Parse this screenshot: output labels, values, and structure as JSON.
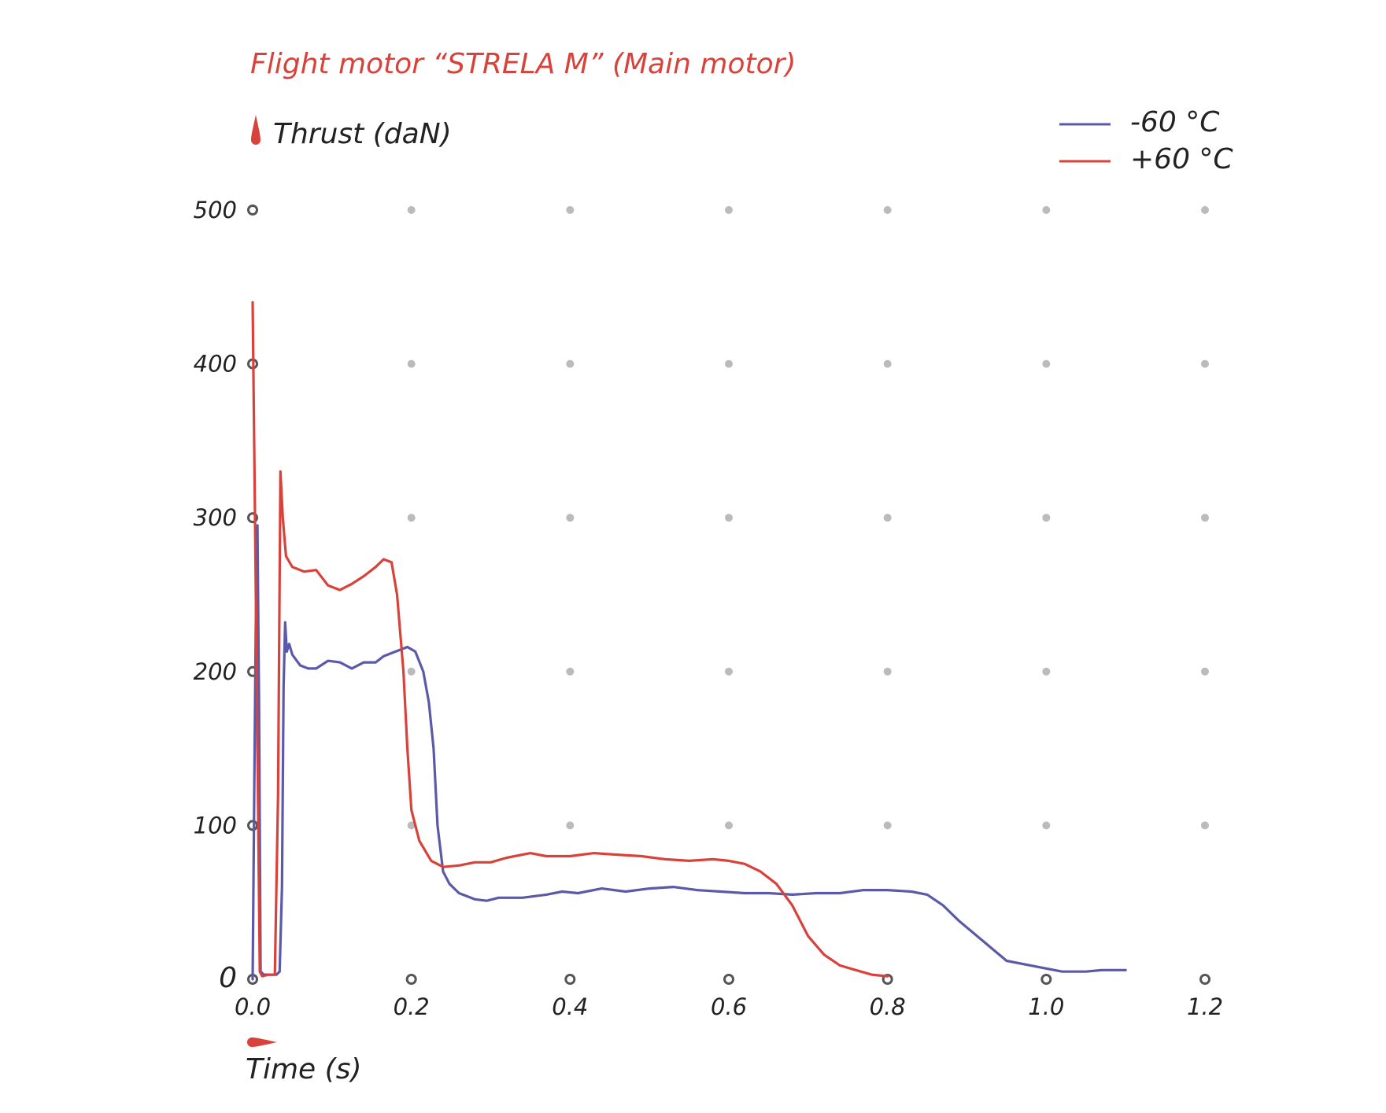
{
  "chart_data": {
    "type": "line",
    "title": "Flight motor “STRELA M” (Main motor)",
    "ylabel": "Thrust (daN)",
    "xlabel": "Time (s)",
    "xlim": [
      0,
      1.2
    ],
    "ylim": [
      0,
      500
    ],
    "x_ticks": [
      "0.0",
      "0.2",
      "0.4",
      "0.6",
      "0.8",
      "1.0",
      "1.2"
    ],
    "y_ticks": [
      "0",
      "100",
      "200",
      "300",
      "400",
      "500"
    ],
    "grid": "dots",
    "legend_position": "top-right",
    "colors": {
      "minus60": "#5b5aa8",
      "plus60": "#d9423a",
      "grid": "#bbbbbb",
      "axis_marker": "#555555"
    },
    "series": [
      {
        "name": "-60 °C",
        "color": "#5b5aa8",
        "points": [
          [
            0.0,
            0
          ],
          [
            0.002,
            120
          ],
          [
            0.004,
            230
          ],
          [
            0.006,
            295
          ],
          [
            0.008,
            180
          ],
          [
            0.01,
            5
          ],
          [
            0.014,
            3
          ],
          [
            0.03,
            3
          ],
          [
            0.034,
            5
          ],
          [
            0.037,
            60
          ],
          [
            0.039,
            190
          ],
          [
            0.041,
            232
          ],
          [
            0.043,
            213
          ],
          [
            0.046,
            218
          ],
          [
            0.05,
            211
          ],
          [
            0.06,
            204
          ],
          [
            0.07,
            202
          ],
          [
            0.08,
            202
          ],
          [
            0.095,
            207
          ],
          [
            0.11,
            206
          ],
          [
            0.125,
            202
          ],
          [
            0.14,
            206
          ],
          [
            0.155,
            206
          ],
          [
            0.165,
            210
          ],
          [
            0.18,
            213
          ],
          [
            0.195,
            216
          ],
          [
            0.205,
            213
          ],
          [
            0.215,
            200
          ],
          [
            0.222,
            180
          ],
          [
            0.228,
            150
          ],
          [
            0.233,
            100
          ],
          [
            0.24,
            70
          ],
          [
            0.248,
            62
          ],
          [
            0.26,
            56
          ],
          [
            0.28,
            52
          ],
          [
            0.295,
            51
          ],
          [
            0.31,
            53
          ],
          [
            0.34,
            53
          ],
          [
            0.37,
            55
          ],
          [
            0.39,
            57
          ],
          [
            0.41,
            56
          ],
          [
            0.44,
            59
          ],
          [
            0.47,
            57
          ],
          [
            0.5,
            59
          ],
          [
            0.53,
            60
          ],
          [
            0.56,
            58
          ],
          [
            0.59,
            57
          ],
          [
            0.62,
            56
          ],
          [
            0.65,
            56
          ],
          [
            0.68,
            55
          ],
          [
            0.71,
            56
          ],
          [
            0.74,
            56
          ],
          [
            0.77,
            58
          ],
          [
            0.8,
            58
          ],
          [
            0.83,
            57
          ],
          [
            0.85,
            55
          ],
          [
            0.87,
            48
          ],
          [
            0.89,
            38
          ],
          [
            0.92,
            25
          ],
          [
            0.95,
            12
          ],
          [
            0.97,
            10
          ],
          [
            1.0,
            7
          ],
          [
            1.02,
            5
          ],
          [
            1.05,
            5
          ],
          [
            1.07,
            6
          ],
          [
            1.1,
            6
          ]
        ]
      },
      {
        "name": "+60 °C",
        "color": "#d9423a",
        "points": [
          [
            0.0,
            440
          ],
          [
            0.003,
            300
          ],
          [
            0.006,
            150
          ],
          [
            0.009,
            5
          ],
          [
            0.012,
            2
          ],
          [
            0.02,
            3
          ],
          [
            0.028,
            3
          ],
          [
            0.032,
            120
          ],
          [
            0.035,
            330
          ],
          [
            0.038,
            300
          ],
          [
            0.042,
            275
          ],
          [
            0.05,
            268
          ],
          [
            0.065,
            265
          ],
          [
            0.08,
            266
          ],
          [
            0.095,
            256
          ],
          [
            0.11,
            253
          ],
          [
            0.125,
            257
          ],
          [
            0.14,
            262
          ],
          [
            0.155,
            268
          ],
          [
            0.165,
            273
          ],
          [
            0.175,
            271
          ],
          [
            0.182,
            250
          ],
          [
            0.19,
            200
          ],
          [
            0.195,
            150
          ],
          [
            0.2,
            110
          ],
          [
            0.21,
            90
          ],
          [
            0.225,
            77
          ],
          [
            0.24,
            73
          ],
          [
            0.26,
            74
          ],
          [
            0.28,
            76
          ],
          [
            0.3,
            76
          ],
          [
            0.32,
            79
          ],
          [
            0.35,
            82
          ],
          [
            0.37,
            80
          ],
          [
            0.4,
            80
          ],
          [
            0.43,
            82
          ],
          [
            0.46,
            81
          ],
          [
            0.49,
            80
          ],
          [
            0.52,
            78
          ],
          [
            0.55,
            77
          ],
          [
            0.58,
            78
          ],
          [
            0.6,
            77
          ],
          [
            0.62,
            75
          ],
          [
            0.64,
            70
          ],
          [
            0.66,
            62
          ],
          [
            0.68,
            48
          ],
          [
            0.7,
            28
          ],
          [
            0.72,
            16
          ],
          [
            0.74,
            9
          ],
          [
            0.76,
            6
          ],
          [
            0.78,
            3
          ],
          [
            0.8,
            2
          ]
        ]
      }
    ]
  }
}
